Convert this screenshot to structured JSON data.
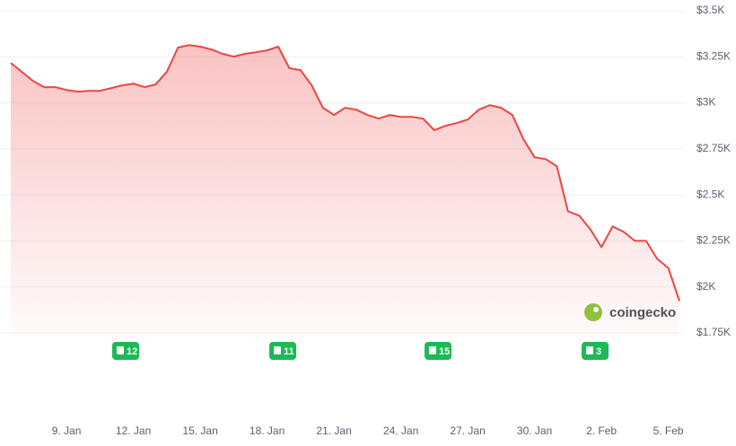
{
  "chart_data": {
    "type": "line",
    "categories": [
      null,
      null,
      null,
      null,
      null,
      "9. Jan",
      null,
      null,
      null,
      null,
      null,
      "12. Jan",
      null,
      null,
      null,
      null,
      null,
      "15. Jan",
      null,
      null,
      null,
      null,
      null,
      "18. Jan",
      null,
      null,
      null,
      null,
      null,
      "21. Jan",
      null,
      null,
      null,
      null,
      null,
      "24. Jan",
      null,
      null,
      null,
      null,
      null,
      "27. Jan",
      null,
      null,
      null,
      null,
      null,
      "30. Jan",
      null,
      null,
      null,
      null,
      null,
      "2. Feb",
      null,
      null,
      null,
      null,
      null,
      "5. Feb",
      null
    ],
    "series": [
      {
        "color": "#ef4444",
        "values": [
          3217,
          3168,
          3119,
          3085,
          3085,
          3070,
          3061,
          3065,
          3065,
          3080,
          3095,
          3104,
          3085,
          3100,
          3168,
          3300,
          3314,
          3305,
          3290,
          3266,
          3251,
          3266,
          3275,
          3285,
          3305,
          3188,
          3178,
          3095,
          2973,
          2934,
          2973,
          2963,
          2934,
          2914,
          2934,
          2924,
          2924,
          2914,
          2851,
          2875,
          2890,
          2909,
          2963,
          2987,
          2973,
          2934,
          2802,
          2704,
          2694,
          2655,
          2411,
          2387,
          2313,
          2216,
          2328,
          2299,
          2250,
          2250,
          2152,
          2103,
          1923
        ]
      }
    ],
    "ylim": [
      1750,
      3500
    ],
    "yticks": [
      {
        "value": 3500,
        "label": "$3.5K"
      },
      {
        "value": 3250,
        "label": "$3.25K"
      },
      {
        "value": 3000,
        "label": "$3K"
      },
      {
        "value": 2750,
        "label": "$2.75K"
      },
      {
        "value": 2500,
        "label": "$2.5K"
      },
      {
        "value": 2250,
        "label": "$2.25K"
      },
      {
        "value": 2000,
        "label": "$2K"
      },
      {
        "value": 1750,
        "label": "$1.75K"
      }
    ],
    "grid": true,
    "annotations": [
      "12",
      "11",
      "15",
      "3"
    ],
    "watermark": "coingecko"
  }
}
